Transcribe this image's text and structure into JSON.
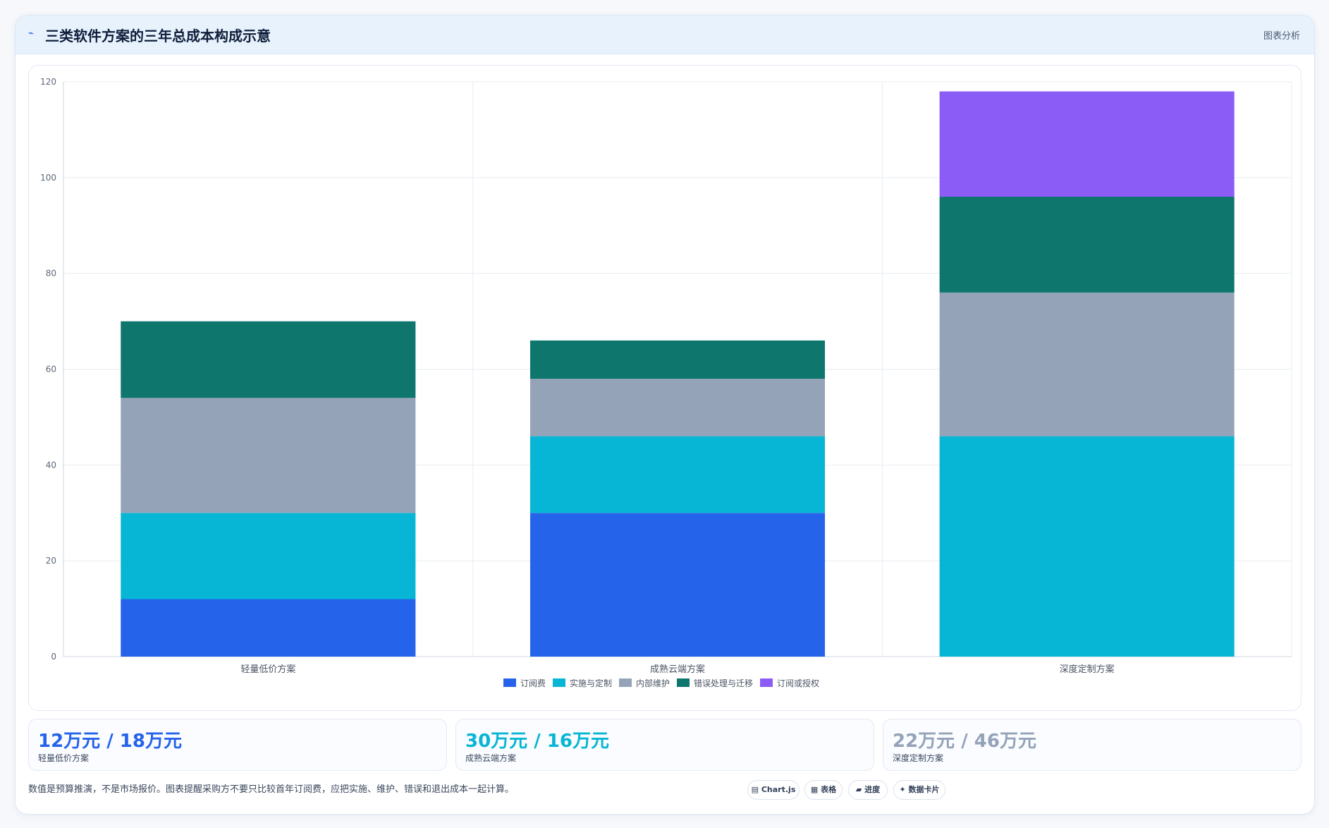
{
  "header": {
    "icon": "chart-icon",
    "title": "三类软件方案的三年总成本构成示意",
    "action_label": "图表分析"
  },
  "chart_data": {
    "type": "bar",
    "stacked": true,
    "categories": [
      "轻量低价方案",
      "成熟云端方案",
      "深度定制方案"
    ],
    "series": [
      {
        "name": "订阅费",
        "color": "#2563eb",
        "values": [
          12,
          30,
          0
        ]
      },
      {
        "name": "实施与定制",
        "color": "#06b6d4",
        "values": [
          18,
          16,
          46
        ]
      },
      {
        "name": "内部维护",
        "color": "#94a3b8",
        "values": [
          24,
          12,
          30
        ]
      },
      {
        "name": "错误处理与迁移",
        "color": "#0f766e",
        "values": [
          16,
          8,
          20
        ]
      },
      {
        "name": "订阅或授权",
        "color": "#8b5cf6",
        "values": [
          0,
          0,
          22
        ]
      }
    ],
    "ylim": [
      0,
      120
    ],
    "yticks": [
      0,
      20,
      40,
      60,
      80,
      100,
      120
    ],
    "grid": true,
    "legend": "bottom"
  },
  "stats": [
    {
      "value": "12万元 / 18万元",
      "label": "轻量低价方案",
      "color": "#2563eb"
    },
    {
      "value": "30万元 / 16万元",
      "label": "成熟云端方案",
      "color": "#06b6d4"
    },
    {
      "value": "22万元 / 46万元",
      "label": "深度定制方案",
      "color": "#94a3b8"
    }
  ],
  "note": "数值是预算推演，不是市场报价。图表提醒采购方不要只比较首年订阅费，应把实施、维护、错误和退出成本一起计算。",
  "chips": [
    {
      "icon": "chart-icon",
      "label": "Chart.js"
    },
    {
      "icon": "table-icon",
      "label": "表格"
    },
    {
      "icon": "progress-icon",
      "label": "进度"
    },
    {
      "icon": "sparkle-icon",
      "label": "数据卡片"
    }
  ]
}
